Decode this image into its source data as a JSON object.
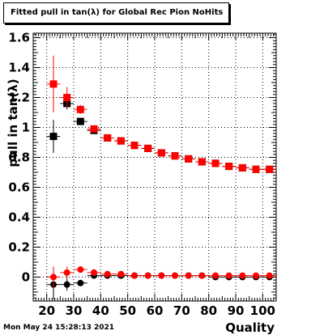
{
  "title": "Fitted pull in tan(λ) for Global Rec Pion NoHits",
  "footer": "Mon May 24 15:28:13 2021",
  "chart_data": {
    "type": "scatter",
    "title": "Fitted pull in tan(λ) for Global Rec Pion NoHits",
    "xlabel": "Quality",
    "ylabel": "pull in tan(λ)",
    "xlim": [
      15,
      105
    ],
    "ylim": [
      -0.16,
      1.63
    ],
    "grid": true,
    "x_ticks": [
      20,
      30,
      40,
      50,
      60,
      70,
      80,
      90,
      100
    ],
    "x_tick_labels": [
      "20",
      "30",
      "40",
      "50",
      "60",
      "70",
      "80",
      "90",
      "100"
    ],
    "y_ticks": [
      0,
      0.2,
      0.4,
      0.6,
      0.8,
      1.0,
      1.2,
      1.4,
      1.6
    ],
    "y_tick_labels": [
      "0",
      "0.2",
      "0.4",
      "0.6",
      "0.8",
      "1",
      "1.2",
      "1.4",
      "1.6"
    ],
    "series": [
      {
        "marker": "square",
        "color": "#000000",
        "x": [
          22.5,
          27.5,
          32.5,
          37.5,
          42.5,
          47.5,
          52.5,
          57.5,
          62.5,
          67.5,
          72.5,
          77.5,
          82.5,
          87.5,
          92.5,
          97.5,
          102.5
        ],
        "y": [
          0.94,
          1.16,
          1.04,
          0.98,
          0.93,
          0.91,
          0.88,
          0.86,
          0.83,
          0.81,
          0.79,
          0.77,
          0.76,
          0.74,
          0.73,
          0.72,
          0.72
        ],
        "yerr": [
          0.11,
          0.04,
          0.02,
          0.01,
          0.01,
          0.01,
          0.01,
          0.01,
          0.01,
          0.01,
          0.01,
          0.01,
          0.01,
          0.01,
          0.01,
          0.01,
          0.01
        ]
      },
      {
        "marker": "square",
        "color": "#ff0000",
        "x": [
          22.5,
          27.5,
          32.5,
          37.5,
          42.5,
          47.5,
          52.5,
          57.5,
          62.5,
          67.5,
          72.5,
          77.5,
          82.5,
          87.5,
          92.5,
          97.5,
          102.5
        ],
        "y": [
          1.29,
          1.2,
          1.12,
          0.99,
          0.93,
          0.91,
          0.88,
          0.86,
          0.83,
          0.81,
          0.79,
          0.77,
          0.76,
          0.74,
          0.73,
          0.72,
          0.72
        ],
        "yerr": [
          0.19,
          0.07,
          0.03,
          0.02,
          0.01,
          0.01,
          0.01,
          0.01,
          0.01,
          0.01,
          0.01,
          0.01,
          0.01,
          0.01,
          0.01,
          0.01,
          0.01
        ]
      },
      {
        "marker": "circle",
        "color": "#000000",
        "x": [
          22.5,
          27.5,
          32.5,
          37.5,
          42.5,
          47.5,
          52.5,
          57.5,
          62.5,
          67.5,
          72.5,
          77.5,
          82.5,
          87.5,
          92.5,
          97.5,
          102.5
        ],
        "y": [
          -0.05,
          -0.05,
          -0.04,
          0.01,
          0.01,
          0.01,
          0.01,
          0.01,
          0.01,
          0.01,
          0.01,
          0.01,
          0.0,
          0.0,
          0.0,
          0.0,
          0.0
        ],
        "yerr": [
          0.1,
          0.04,
          0.02,
          0.01,
          0.01,
          0.01,
          0.01,
          0.01,
          0.01,
          0.01,
          0.01,
          0.01,
          0.01,
          0.01,
          0.01,
          0.01,
          0.01
        ]
      },
      {
        "marker": "circle",
        "color": "#ff0000",
        "x": [
          22.5,
          27.5,
          32.5,
          37.5,
          42.5,
          47.5,
          52.5,
          57.5,
          62.5,
          67.5,
          72.5,
          77.5,
          82.5,
          87.5,
          92.5,
          97.5,
          102.5
        ],
        "y": [
          0.0,
          0.03,
          0.05,
          0.03,
          0.02,
          0.02,
          0.01,
          0.01,
          0.01,
          0.01,
          0.01,
          0.01,
          0.01,
          0.01,
          0.01,
          0.01,
          0.01
        ],
        "yerr": [
          0.07,
          0.04,
          0.02,
          0.01,
          0.01,
          0.01,
          0.01,
          0.01,
          0.01,
          0.01,
          0.01,
          0.01,
          0.01,
          0.01,
          0.01,
          0.01,
          0.01
        ]
      }
    ]
  }
}
